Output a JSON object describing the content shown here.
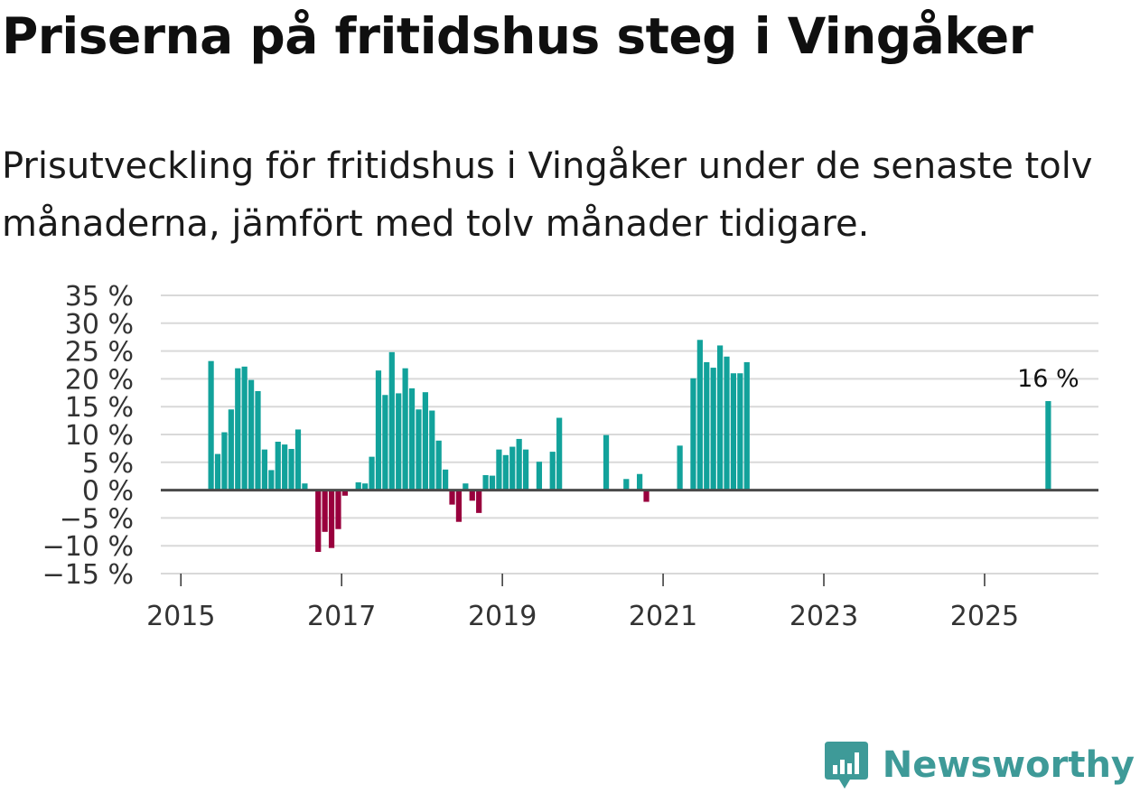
{
  "header": {
    "title": "Priserna på fritidshus steg i Vingåker",
    "subtitle": "Prisutveckling för fritidshus i Vingåker under de senaste tolv månaderna, jämfört med tolv månader tidigare."
  },
  "brand": {
    "name": "Newsworthy",
    "logo_icon": "newsworthy-logo-icon"
  },
  "colors": {
    "positive": "#12a29b",
    "negative": "#99003d",
    "zero_line": "#4a4a4a",
    "grid": "#d9d9d9",
    "axis_text": "#333333",
    "brand": "#3e9a98"
  },
  "chart_data": {
    "type": "bar",
    "title": "Priserna på fritidshus steg i Vingåker",
    "subtitle": "Prisutveckling för fritidshus i Vingåker under de senaste tolv månaderna, jämfört med tolv månader tidigare.",
    "xlabel": "",
    "ylabel": "",
    "ylim": [
      -15,
      35
    ],
    "xlim": [
      "2014-10",
      "2026-06"
    ],
    "y_ticks": [
      {
        "value": 35,
        "label": "35 %"
      },
      {
        "value": 30,
        "label": "30 %"
      },
      {
        "value": 25,
        "label": "25 %"
      },
      {
        "value": 20,
        "label": "20 %"
      },
      {
        "value": 15,
        "label": "15 %"
      },
      {
        "value": 10,
        "label": "10 %"
      },
      {
        "value": 5,
        "label": "5 %"
      },
      {
        "value": 0,
        "label": "0 %"
      },
      {
        "value": -5,
        "label": "−5 %"
      },
      {
        "value": -10,
        "label": "−10 %"
      },
      {
        "value": -15,
        "label": "−15 %"
      }
    ],
    "x_ticks": [
      {
        "year": 2015,
        "label": "2015"
      },
      {
        "year": 2017,
        "label": "2017"
      },
      {
        "year": 2019,
        "label": "2019"
      },
      {
        "year": 2021,
        "label": "2021"
      },
      {
        "year": 2023,
        "label": "2023"
      },
      {
        "year": 2025,
        "label": "2025"
      }
    ],
    "grid": true,
    "annotation": {
      "month": "2025-10",
      "label": "16 %"
    },
    "series": [
      {
        "name": "Prisutveckling",
        "points": [
          {
            "month": "2015-05",
            "value": 23.2
          },
          {
            "month": "2015-06",
            "value": 6.5
          },
          {
            "month": "2015-07",
            "value": 10.4
          },
          {
            "month": "2015-08",
            "value": 14.5
          },
          {
            "month": "2015-09",
            "value": 21.9
          },
          {
            "month": "2015-10",
            "value": 22.2
          },
          {
            "month": "2015-11",
            "value": 19.8
          },
          {
            "month": "2015-12",
            "value": 17.8
          },
          {
            "month": "2016-01",
            "value": 7.3
          },
          {
            "month": "2016-02",
            "value": 3.6
          },
          {
            "month": "2016-03",
            "value": 8.7
          },
          {
            "month": "2016-04",
            "value": 8.2
          },
          {
            "month": "2016-05",
            "value": 7.4
          },
          {
            "month": "2016-06",
            "value": 10.9
          },
          {
            "month": "2016-07",
            "value": 1.2
          },
          {
            "month": "2016-09",
            "value": -11.1
          },
          {
            "month": "2016-10",
            "value": -7.5
          },
          {
            "month": "2016-11",
            "value": -10.4
          },
          {
            "month": "2016-12",
            "value": -7.0
          },
          {
            "month": "2017-01",
            "value": -1.0
          },
          {
            "month": "2017-03",
            "value": 1.4
          },
          {
            "month": "2017-04",
            "value": 1.2
          },
          {
            "month": "2017-05",
            "value": 6.0
          },
          {
            "month": "2017-06",
            "value": 21.5
          },
          {
            "month": "2017-07",
            "value": 17.1
          },
          {
            "month": "2017-08",
            "value": 24.8
          },
          {
            "month": "2017-09",
            "value": 17.4
          },
          {
            "month": "2017-10",
            "value": 21.9
          },
          {
            "month": "2017-11",
            "value": 18.3
          },
          {
            "month": "2017-12",
            "value": 14.5
          },
          {
            "month": "2018-01",
            "value": 17.6
          },
          {
            "month": "2018-02",
            "value": 14.3
          },
          {
            "month": "2018-03",
            "value": 8.9
          },
          {
            "month": "2018-04",
            "value": 3.7
          },
          {
            "month": "2018-05",
            "value": -2.6
          },
          {
            "month": "2018-06",
            "value": -5.7
          },
          {
            "month": "2018-07",
            "value": 1.2
          },
          {
            "month": "2018-08",
            "value": -1.9
          },
          {
            "month": "2018-09",
            "value": -4.1
          },
          {
            "month": "2018-10",
            "value": 2.7
          },
          {
            "month": "2018-11",
            "value": 2.6
          },
          {
            "month": "2018-12",
            "value": 7.3
          },
          {
            "month": "2019-01",
            "value": 6.3
          },
          {
            "month": "2019-02",
            "value": 7.8
          },
          {
            "month": "2019-03",
            "value": 9.2
          },
          {
            "month": "2019-04",
            "value": 7.3
          },
          {
            "month": "2019-06",
            "value": 5.1
          },
          {
            "month": "2019-08",
            "value": 6.9
          },
          {
            "month": "2019-09",
            "value": 13.0
          },
          {
            "month": "2020-04",
            "value": 9.9
          },
          {
            "month": "2020-07",
            "value": 2.0
          },
          {
            "month": "2020-09",
            "value": 2.9
          },
          {
            "month": "2020-10",
            "value": -2.1
          },
          {
            "month": "2021-03",
            "value": 8.0
          },
          {
            "month": "2021-05",
            "value": 20.1
          },
          {
            "month": "2021-06",
            "value": 27.0
          },
          {
            "month": "2021-07",
            "value": 23.0
          },
          {
            "month": "2021-08",
            "value": 22.0
          },
          {
            "month": "2021-09",
            "value": 26.0
          },
          {
            "month": "2021-10",
            "value": 24.0
          },
          {
            "month": "2021-11",
            "value": 21.0
          },
          {
            "month": "2021-12",
            "value": 21.0
          },
          {
            "month": "2022-01",
            "value": 23.0
          },
          {
            "month": "2025-10",
            "value": 16.0
          }
        ]
      }
    ]
  }
}
